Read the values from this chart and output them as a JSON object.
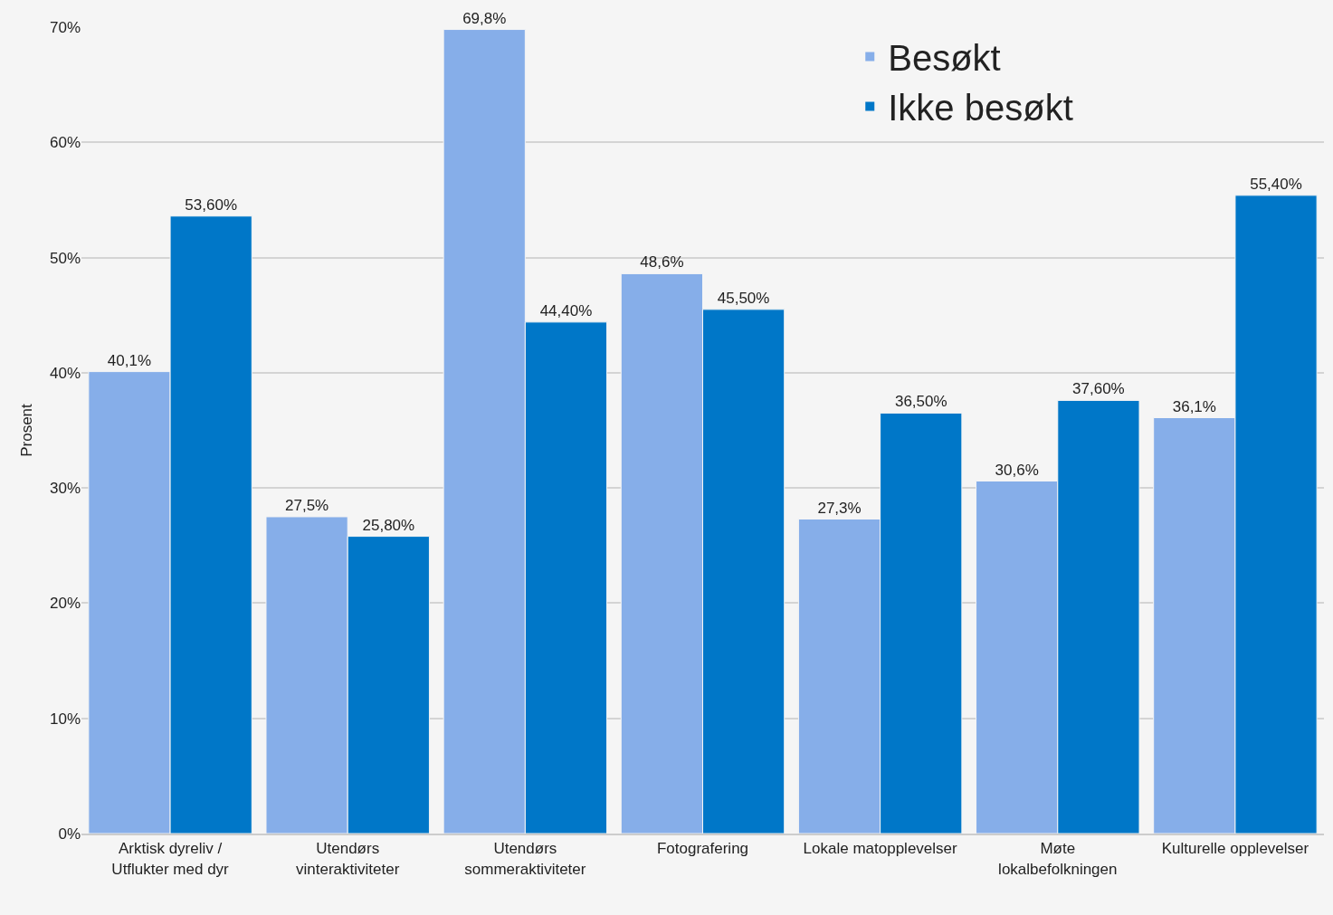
{
  "chart_data": {
    "type": "bar",
    "ylabel": "Prosent",
    "categories": [
      "Arktisk dyreliv /\nUtflukter med dyr",
      "Utendørs\nvinteraktiviteter",
      "Utendørs\nsommeraktiviteter",
      "Fotografering",
      "Lokale matopplevelser",
      "Møte\nlokalbefolkningen",
      "Kulturelle opplevelser"
    ],
    "series": [
      {
        "name": "Besøkt",
        "color": "#86aee9",
        "values": [
          40.1,
          27.5,
          69.8,
          48.6,
          27.3,
          30.6,
          36.1
        ],
        "value_labels": [
          "40,1%",
          "27,5%",
          "69,8%",
          "48,6%",
          "27,3%",
          "30,6%",
          "36,1%"
        ]
      },
      {
        "name": "Ikke besøkt",
        "color": "#0077c8",
        "values": [
          53.6,
          25.8,
          44.4,
          45.5,
          36.5,
          37.6,
          55.4
        ],
        "value_labels": [
          "53,60%",
          "25,80%",
          "44,40%",
          "45,50%",
          "36,50%",
          "37,60%",
          "55,40%"
        ]
      }
    ],
    "ylim": [
      0,
      70
    ],
    "yticks": [
      {
        "value": 0,
        "label": "0%"
      },
      {
        "value": 10,
        "label": "10%"
      },
      {
        "value": 20,
        "label": "20%"
      },
      {
        "value": 30,
        "label": "30%"
      },
      {
        "value": 40,
        "label": "40%"
      },
      {
        "value": 50,
        "label": "50%"
      },
      {
        "value": 60,
        "label": "60%"
      },
      {
        "value": 70,
        "label": "70%"
      }
    ],
    "grid": "y",
    "legend": "top right"
  }
}
